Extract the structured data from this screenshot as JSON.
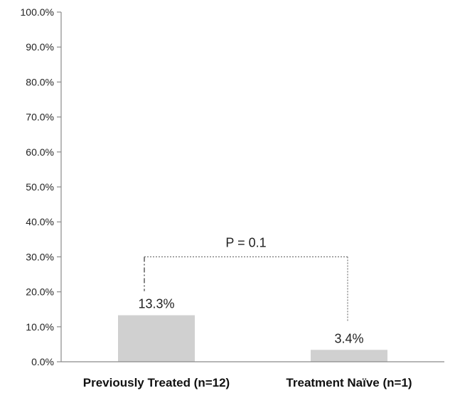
{
  "chart_data": {
    "type": "bar",
    "categories": [
      "Previously Treated (n=12)",
      "Treatment Naïve (n=1)"
    ],
    "values": [
      13.3,
      3.4
    ],
    "value_labels": [
      "13.3%",
      "3.4%"
    ],
    "ylim": [
      0,
      100
    ],
    "yticks": [
      0,
      10,
      20,
      30,
      40,
      50,
      60,
      70,
      80,
      90,
      100
    ],
    "ytick_labels": [
      "0.0%",
      "10.0%",
      "20.0%",
      "30.0%",
      "40.0%",
      "50.0%",
      "60.0%",
      "70.0%",
      "80.0%",
      "90.0%",
      "100.0%"
    ],
    "annotations": [
      {
        "text": "P = 0.1",
        "bracket_level": 30
      }
    ],
    "bar_color": "#d0d0d0",
    "grid": false,
    "legend": "none"
  }
}
